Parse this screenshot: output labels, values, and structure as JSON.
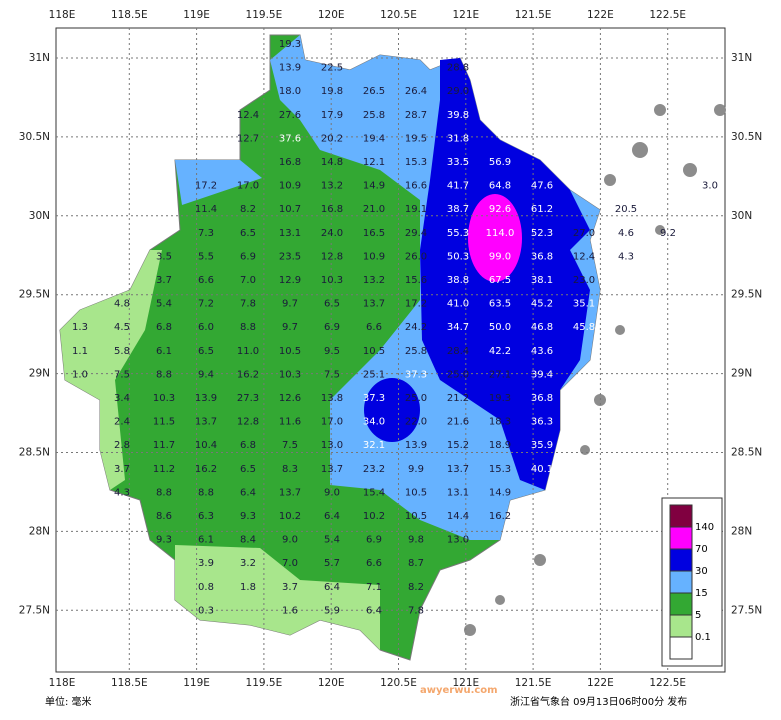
{
  "title_unit": "单位: 毫米",
  "footer": "浙江省气象台 09月13日06时00分 发布",
  "watermark": "awyerwu.com",
  "lon_labels": [
    "118E",
    "118.5E",
    "119E",
    "119.5E",
    "120E",
    "120.5E",
    "121E",
    "121.5E",
    "122E",
    "122.5E"
  ],
  "lat_labels": [
    "31N",
    "30.5N",
    "30N",
    "29.5N",
    "29N",
    "28.5N",
    "28N",
    "27.5N"
  ],
  "legend": {
    "levels": [
      "140",
      "70",
      "30",
      "15",
      "5",
      "0.1"
    ],
    "colors": [
      "#800040",
      "#ff00ff",
      "#0000e0",
      "#66b2ff",
      "#33a833",
      "#a8e68c",
      "#ffffff"
    ]
  },
  "stations": [
    [
      null,
      null,
      null,
      null,
      null,
      "19.3"
    ],
    [
      null,
      null,
      null,
      null,
      null,
      "13.9",
      "22.5",
      null,
      null,
      "28.8"
    ],
    [
      null,
      null,
      null,
      null,
      null,
      "18.0",
      "19.8",
      "26.5",
      "26.4",
      "29.0"
    ],
    [
      null,
      null,
      null,
      null,
      "12.4",
      "27.6",
      "17.9",
      "25.8",
      "28.7",
      "39.8"
    ],
    [
      null,
      null,
      null,
      null,
      "12.7",
      "37.6",
      "20.2",
      "19.4",
      "19.5",
      "31.8"
    ],
    [
      null,
      null,
      null,
      null,
      null,
      "16.8",
      "14.8",
      "12.1",
      "15.3",
      "33.5",
      "56.9"
    ],
    [
      null,
      null,
      null,
      "17.2",
      "17.0",
      "10.9",
      "13.2",
      "14.9",
      "16.6",
      "41.7",
      "64.8",
      "47.6",
      null,
      null,
      null,
      "3.0"
    ],
    [
      null,
      null,
      null,
      "11.4",
      "8.2",
      "10.7",
      "16.8",
      "21.0",
      "19.1",
      "38.7",
      "92.6",
      "61.2",
      null,
      "20.5"
    ],
    [
      null,
      null,
      null,
      "7.3",
      "6.5",
      "13.1",
      "24.0",
      "16.5",
      "29.4",
      "55.3",
      "114.0",
      "52.3",
      "27.0",
      "4.6",
      "9.2"
    ],
    [
      null,
      null,
      "3.5",
      "5.5",
      "6.9",
      "23.5",
      "12.8",
      "10.9",
      "26.0",
      "50.3",
      "99.0",
      "36.8",
      "12.4",
      "4.3"
    ],
    [
      null,
      null,
      "3.7",
      "6.6",
      "7.0",
      "12.9",
      "10.3",
      "13.2",
      "15.6",
      "38.8",
      "67.5",
      "38.1",
      "23.0"
    ],
    [
      null,
      "4.8",
      "5.4",
      "7.2",
      "7.8",
      "9.7",
      "6.5",
      "13.7",
      "17.2",
      "41.0",
      "63.5",
      "45.2",
      "35.1"
    ],
    [
      "1.3",
      "4.5",
      "6.8",
      "6.0",
      "8.8",
      "9.7",
      "6.9",
      "6.6",
      "24.2",
      "34.7",
      "50.0",
      "46.8",
      "45.8"
    ],
    [
      "1.1",
      "5.8",
      "6.1",
      "6.5",
      "11.0",
      "10.5",
      "9.5",
      "10.5",
      "25.8",
      "28.4",
      "42.2",
      "43.6"
    ],
    [
      "1.0",
      "7.5",
      "8.8",
      "9.4",
      "16.2",
      "10.3",
      "7.5",
      "25.1",
      "37.3",
      "25.0",
      "27.1",
      "39.4"
    ],
    [
      null,
      "3.4",
      "10.3",
      "13.9",
      "27.3",
      "12.6",
      "13.8",
      "37.3",
      "25.0",
      "21.2",
      "19.3",
      "36.8"
    ],
    [
      null,
      "2.4",
      "11.5",
      "13.7",
      "12.8",
      "11.6",
      "17.0",
      "34.0",
      "22.0",
      "21.6",
      "18.3",
      "36.3"
    ],
    [
      null,
      "2.8",
      "11.7",
      "10.4",
      "6.8",
      "7.5",
      "13.0",
      "32.1",
      "13.9",
      "15.2",
      "18.9",
      "35.9"
    ],
    [
      null,
      "3.7",
      "11.2",
      "16.2",
      "6.5",
      "8.3",
      "13.7",
      "23.2",
      "9.9",
      "13.7",
      "15.3",
      "40.1"
    ],
    [
      null,
      "4.3",
      "8.8",
      "8.8",
      "6.4",
      "13.7",
      "9.0",
      "15.4",
      "10.5",
      "13.1",
      "14.9"
    ],
    [
      null,
      null,
      "8.6",
      "6.3",
      "9.3",
      "10.2",
      "6.4",
      "10.2",
      "10.5",
      "14.4",
      "16.2"
    ],
    [
      null,
      null,
      "9.3",
      "6.1",
      "8.4",
      "9.0",
      "5.4",
      "6.9",
      "9.8",
      "13.0"
    ],
    [
      null,
      null,
      null,
      "3.9",
      "3.2",
      "7.0",
      "5.7",
      "6.6",
      "8.7"
    ],
    [
      null,
      null,
      null,
      "0.8",
      "1.8",
      "3.7",
      "6.4",
      "7.1",
      "8.2"
    ],
    [
      null,
      null,
      null,
      "0.3",
      null,
      "1.6",
      "5.9",
      "6.4",
      "7.8"
    ]
  ]
}
